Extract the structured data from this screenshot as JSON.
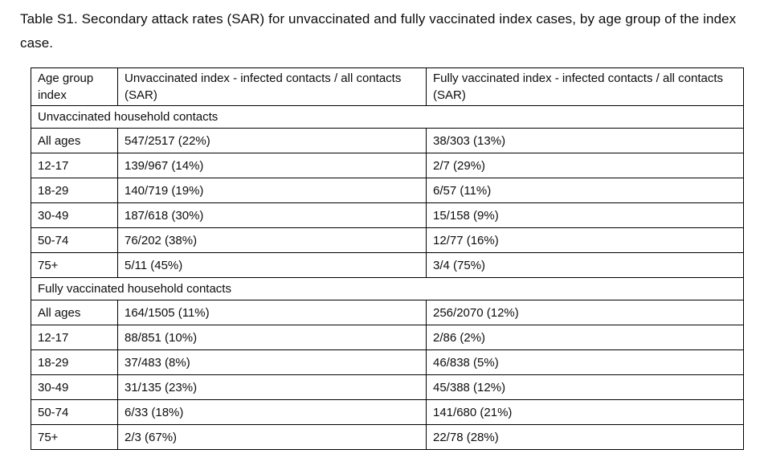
{
  "page": {
    "title": "Table S1. Secondary attack rates (SAR) for unvaccinated and fully vaccinated index cases, by age group of the index case."
  },
  "table": {
    "columns": [
      "Age group index",
      "Unvaccinated index - infected contacts / all contacts (SAR)",
      "Fully vaccinated index - infected contacts / all contacts (SAR)"
    ],
    "sections": [
      {
        "label": "Unvaccinated household contacts",
        "rows": [
          {
            "age_group": "All ages",
            "unvaccinated_index": "547/2517 (22%)",
            "fully_vaccinated_index": "38/303 (13%)"
          },
          {
            "age_group": "12-17",
            "unvaccinated_index": "139/967 (14%)",
            "fully_vaccinated_index": "2/7 (29%)"
          },
          {
            "age_group": "18-29",
            "unvaccinated_index": "140/719 (19%)",
            "fully_vaccinated_index": "6/57 (11%)"
          },
          {
            "age_group": "30-49",
            "unvaccinated_index": "187/618 (30%)",
            "fully_vaccinated_index": "15/158 (9%)"
          },
          {
            "age_group": "50-74",
            "unvaccinated_index": "76/202 (38%)",
            "fully_vaccinated_index": "12/77 (16%)"
          },
          {
            "age_group": "75+",
            "unvaccinated_index": "5/11 (45%)",
            "fully_vaccinated_index": "3/4 (75%)"
          }
        ]
      },
      {
        "label": "Fully vaccinated household contacts",
        "rows": [
          {
            "age_group": "All ages",
            "unvaccinated_index": "164/1505 (11%)",
            "fully_vaccinated_index": "256/2070 (12%)"
          },
          {
            "age_group": "12-17",
            "unvaccinated_index": "88/851 (10%)",
            "fully_vaccinated_index": "2/86 (2%)"
          },
          {
            "age_group": "18-29",
            "unvaccinated_index": "37/483 (8%)",
            "fully_vaccinated_index": "46/838 (5%)"
          },
          {
            "age_group": "30-49",
            "unvaccinated_index": "31/135 (23%)",
            "fully_vaccinated_index": "45/388 (12%)"
          },
          {
            "age_group": "50-74",
            "unvaccinated_index": "6/33 (18%)",
            "fully_vaccinated_index": "141/680 (21%)"
          },
          {
            "age_group": "75+",
            "unvaccinated_index": "2/3 (67%)",
            "fully_vaccinated_index": "22/78 (28%)"
          }
        ]
      }
    ]
  }
}
